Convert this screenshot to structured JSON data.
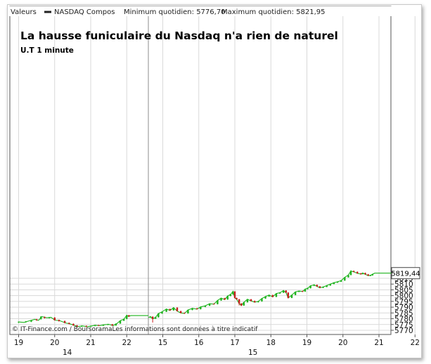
{
  "header": {
    "valeurs_label": "Valeurs",
    "series_label": "NASDAQ Compos",
    "min_label": "Minimum quotidien: 5776,70",
    "max_label": "Maximum quotidien: 5821,95"
  },
  "chart_data": {
    "type": "candlestick",
    "title": "La hausse funiculaire du Nasdaq n'a rien de naturel",
    "subtitle": "U.T 1 minute",
    "footer": "© IT-Finance.com / BoursoramaLes informations sont données à titre indicatif",
    "last_value_label": "5819,44",
    "last_value": 5819.44,
    "ylim": [
      5770,
      5823
    ],
    "y_ticks": [
      5770,
      5775,
      5780,
      5785,
      5790,
      5795,
      5800,
      5805,
      5810,
      5815
    ],
    "x_hour_labels": [
      "19",
      "20",
      "21",
      "22",
      "15",
      "16",
      "17",
      "18",
      "19",
      "20",
      "21",
      "22"
    ],
    "x_day_labels": [
      "14",
      "15"
    ],
    "grid": true,
    "colors": {
      "up": "#1db31d",
      "down": "#c81e1e",
      "flat": "#1db31d",
      "grid": "#d9d9d9",
      "day_separator": "#8c8c8c"
    },
    "series": [
      {
        "session": "14",
        "path": [
          [
            0.0,
            5777.2
          ],
          [
            0.15,
            5776.8
          ],
          [
            0.3,
            5778.2
          ],
          [
            0.45,
            5779.4
          ],
          [
            0.55,
            5778.6
          ],
          [
            0.65,
            5781.8
          ],
          [
            0.78,
            5780.8
          ],
          [
            0.9,
            5781.2
          ],
          [
            1.0,
            5778.8
          ],
          [
            1.15,
            5778.2
          ],
          [
            1.3,
            5776.4
          ],
          [
            1.42,
            5775.6
          ],
          [
            1.55,
            5774.2
          ],
          [
            1.65,
            5773.2
          ],
          [
            1.78,
            5773.8
          ],
          [
            1.9,
            5773.1
          ],
          [
            2.0,
            5773.6
          ],
          [
            2.12,
            5774.3
          ],
          [
            2.25,
            5774.0
          ],
          [
            2.38,
            5774.8
          ],
          [
            2.5,
            5775.2
          ],
          [
            2.62,
            5774.1
          ],
          [
            2.72,
            5775.6
          ],
          [
            2.82,
            5778.3
          ],
          [
            2.92,
            5779.6
          ],
          [
            3.0,
            5783.0
          ],
          [
            3.05,
            5782.0
          ],
          [
            3.12,
            5782.7
          ],
          [
            3.52,
            5782.7
          ],
          [
            3.6,
            5782.7
          ]
        ]
      },
      {
        "session": "15",
        "path": [
          [
            3.6,
            5781.0
          ],
          [
            3.66,
            5781.8
          ],
          [
            3.72,
            5779.8
          ],
          [
            3.8,
            5781.2
          ],
          [
            3.88,
            5784.5
          ],
          [
            3.98,
            5786.0
          ],
          [
            4.1,
            5788.4
          ],
          [
            4.2,
            5787.2
          ],
          [
            4.3,
            5789.5
          ],
          [
            4.4,
            5786.6
          ],
          [
            4.5,
            5785.0
          ],
          [
            4.6,
            5784.6
          ],
          [
            4.7,
            5787.6
          ],
          [
            4.82,
            5789.0
          ],
          [
            4.95,
            5788.3
          ],
          [
            5.05,
            5790.2
          ],
          [
            5.18,
            5791.2
          ],
          [
            5.3,
            5793.0
          ],
          [
            5.42,
            5792.6
          ],
          [
            5.52,
            5795.8
          ],
          [
            5.62,
            5797.8
          ],
          [
            5.72,
            5796.6
          ],
          [
            5.8,
            5799.7
          ],
          [
            5.88,
            5801.0
          ],
          [
            5.95,
            5803.6
          ],
          [
            6.0,
            5798.0
          ],
          [
            6.05,
            5796.8
          ],
          [
            6.12,
            5793.2
          ],
          [
            6.18,
            5791.4
          ],
          [
            6.25,
            5794.2
          ],
          [
            6.35,
            5796.8
          ],
          [
            6.45,
            5795.4
          ],
          [
            6.55,
            5794.3
          ],
          [
            6.65,
            5795.0
          ],
          [
            6.75,
            5797.5
          ],
          [
            6.85,
            5799.2
          ],
          [
            6.95,
            5800.5
          ],
          [
            7.05,
            5798.9
          ],
          [
            7.15,
            5801.8
          ],
          [
            7.25,
            5802.5
          ],
          [
            7.35,
            5804.4
          ],
          [
            7.42,
            5802.6
          ],
          [
            7.48,
            5798.0
          ],
          [
            7.58,
            5800.5
          ],
          [
            7.68,
            5803.2
          ],
          [
            7.78,
            5804.0
          ],
          [
            7.88,
            5803.5
          ],
          [
            7.95,
            5805.6
          ],
          [
            8.02,
            5806.4
          ],
          [
            8.1,
            5808.5
          ],
          [
            8.2,
            5809.3
          ],
          [
            8.28,
            5808.0
          ],
          [
            8.36,
            5806.8
          ],
          [
            8.45,
            5807.5
          ],
          [
            8.55,
            5808.7
          ],
          [
            8.65,
            5810.0
          ],
          [
            8.75,
            5811.2
          ],
          [
            8.85,
            5812.0
          ],
          [
            8.95,
            5813.0
          ],
          [
            9.05,
            5815.8
          ],
          [
            9.15,
            5817.8
          ],
          [
            9.22,
            5821.3
          ],
          [
            9.3,
            5820.6
          ],
          [
            9.4,
            5819.3
          ],
          [
            9.5,
            5818.6
          ],
          [
            9.55,
            5819.6
          ],
          [
            9.62,
            5818.4
          ],
          [
            9.7,
            5817.3
          ],
          [
            9.76,
            5817.5
          ],
          [
            9.82,
            5818.5
          ],
          [
            9.88,
            5819.44
          ],
          [
            10.5,
            5819.44
          ]
        ]
      }
    ],
    "candles": [
      [
        0.0,
        5776.7,
        5777.4,
        5776.4,
        5777.6
      ],
      [
        0.2,
        5777.0,
        5777.6,
        5776.6,
        5778.0
      ],
      [
        0.35,
        5777.4,
        5778.5,
        5777.1,
        5778.9
      ],
      [
        0.5,
        5779.4,
        5778.6,
        5778.3,
        5779.9
      ],
      [
        0.62,
        5779.6,
        5781.8,
        5779.3,
        5782.2
      ],
      [
        0.72,
        5781.5,
        5780.6,
        5780.2,
        5781.9
      ],
      [
        0.85,
        5780.6,
        5781.1,
        5780.2,
        5781.5
      ],
      [
        1.0,
        5781.0,
        5778.7,
        5778.4,
        5781.3
      ],
      [
        1.12,
        5779.0,
        5778.0,
        5777.5,
        5779.2
      ],
      [
        1.28,
        5778.0,
        5776.4,
        5776.0,
        5778.4
      ],
      [
        1.4,
        5776.4,
        5775.6,
        5775.2,
        5776.7
      ],
      [
        1.52,
        5775.6,
        5774.2,
        5773.9,
        5775.9
      ],
      [
        1.62,
        5774.2,
        5773.3,
        5772.9,
        5774.5
      ],
      [
        1.75,
        5773.2,
        5773.9,
        5772.9,
        5774.3
      ],
      [
        1.88,
        5773.8,
        5773.2,
        5772.8,
        5774.2
      ],
      [
        2.0,
        5773.2,
        5773.7,
        5772.8,
        5774.0
      ],
      [
        2.12,
        5773.7,
        5774.4,
        5773.4,
        5774.8
      ],
      [
        2.22,
        5774.4,
        5774.0,
        5773.6,
        5774.7
      ],
      [
        2.35,
        5774.0,
        5774.8,
        5773.7,
        5775.1
      ],
      [
        2.48,
        5774.8,
        5775.3,
        5774.4,
        5775.6
      ],
      [
        2.6,
        5775.2,
        5774.1,
        5773.8,
        5775.4
      ],
      [
        2.7,
        5774.1,
        5775.7,
        5773.9,
        5776.0
      ],
      [
        2.82,
        5775.8,
        5778.3,
        5775.6,
        5778.6
      ],
      [
        2.92,
        5778.3,
        5779.7,
        5778.0,
        5780.2
      ],
      [
        3.0,
        5779.8,
        5783.0,
        5779.5,
        5783.4
      ],
      [
        3.06,
        5783.0,
        5782.0,
        5781.6,
        5783.3
      ],
      [
        3.66,
        5781.0,
        5781.8,
        5780.7,
        5782.2
      ],
      [
        3.72,
        5781.8,
        5779.9,
        5776.7,
        5782.0
      ],
      [
        3.8,
        5780.0,
        5781.3,
        5779.7,
        5781.7
      ],
      [
        3.88,
        5781.3,
        5784.5,
        5781.0,
        5784.8
      ],
      [
        3.98,
        5784.5,
        5786.0,
        5784.2,
        5786.4
      ],
      [
        4.1,
        5786.0,
        5788.4,
        5785.8,
        5788.8
      ],
      [
        4.2,
        5788.4,
        5787.2,
        5786.8,
        5788.7
      ],
      [
        4.3,
        5787.2,
        5789.6,
        5787.0,
        5790.0
      ],
      [
        4.4,
        5789.6,
        5786.6,
        5786.2,
        5789.9
      ],
      [
        4.5,
        5786.6,
        5785.0,
        5784.6,
        5786.9
      ],
      [
        4.6,
        5785.0,
        5784.6,
        5784.2,
        5785.4
      ],
      [
        4.7,
        5784.6,
        5787.6,
        5784.4,
        5788.0
      ],
      [
        4.82,
        5787.6,
        5789.0,
        5787.3,
        5789.4
      ],
      [
        4.95,
        5789.0,
        5788.3,
        5787.9,
        5789.3
      ],
      [
        5.05,
        5788.3,
        5790.2,
        5788.0,
        5790.6
      ],
      [
        5.18,
        5790.2,
        5791.2,
        5789.9,
        5791.6
      ],
      [
        5.3,
        5791.2,
        5793.0,
        5791.0,
        5793.4
      ],
      [
        5.42,
        5793.0,
        5792.6,
        5792.2,
        5793.3
      ],
      [
        5.52,
        5792.6,
        5795.8,
        5792.4,
        5796.2
      ],
      [
        5.62,
        5795.8,
        5797.8,
        5795.5,
        5798.2
      ],
      [
        5.72,
        5797.8,
        5796.6,
        5796.2,
        5798.1
      ],
      [
        5.8,
        5796.6,
        5799.7,
        5796.4,
        5800.1
      ],
      [
        5.88,
        5799.7,
        5801.0,
        5799.4,
        5801.4
      ],
      [
        5.95,
        5801.0,
        5803.6,
        5800.8,
        5804.2
      ],
      [
        6.0,
        5803.6,
        5798.0,
        5797.6,
        5803.9
      ],
      [
        6.05,
        5798.0,
        5796.8,
        5796.3,
        5798.3
      ],
      [
        6.12,
        5796.8,
        5793.2,
        5791.5,
        5797.1
      ],
      [
        6.18,
        5793.2,
        5791.4,
        5791.0,
        5793.5
      ],
      [
        6.25,
        5791.4,
        5794.2,
        5791.2,
        5794.6
      ],
      [
        6.35,
        5794.2,
        5796.8,
        5794.0,
        5797.2
      ],
      [
        6.45,
        5796.8,
        5795.4,
        5795.0,
        5797.1
      ],
      [
        6.55,
        5795.4,
        5794.3,
        5793.9,
        5795.7
      ],
      [
        6.65,
        5794.3,
        5795.0,
        5794.0,
        5795.4
      ],
      [
        6.75,
        5795.0,
        5797.5,
        5794.8,
        5797.9
      ],
      [
        6.85,
        5797.5,
        5799.2,
        5797.2,
        5799.6
      ],
      [
        6.95,
        5799.2,
        5800.5,
        5799.0,
        5800.9
      ],
      [
        7.05,
        5800.5,
        5798.9,
        5798.5,
        5800.8
      ],
      [
        7.15,
        5798.9,
        5801.8,
        5798.7,
        5802.2
      ],
      [
        7.25,
        5801.8,
        5802.5,
        5801.5,
        5802.9
      ],
      [
        7.35,
        5802.5,
        5804.4,
        5802.3,
        5804.8
      ],
      [
        7.42,
        5804.4,
        5802.6,
        5802.2,
        5804.7
      ],
      [
        7.48,
        5802.6,
        5798.0,
        5797.6,
        5802.9
      ],
      [
        7.58,
        5798.0,
        5800.5,
        5797.8,
        5800.9
      ],
      [
        7.68,
        5800.5,
        5803.2,
        5800.3,
        5803.6
      ],
      [
        7.78,
        5803.2,
        5804.0,
        5803.0,
        5804.4
      ],
      [
        7.88,
        5804.0,
        5803.5,
        5803.1,
        5804.3
      ],
      [
        7.95,
        5803.5,
        5805.6,
        5803.3,
        5806.0
      ],
      [
        8.02,
        5805.6,
        5806.4,
        5805.4,
        5806.8
      ],
      [
        8.1,
        5806.4,
        5808.5,
        5806.2,
        5808.9
      ],
      [
        8.2,
        5808.5,
        5809.3,
        5808.2,
        5809.9
      ],
      [
        8.28,
        5809.3,
        5808.0,
        5807.6,
        5809.6
      ],
      [
        8.36,
        5808.0,
        5806.8,
        5806.4,
        5808.3
      ],
      [
        8.45,
        5806.8,
        5807.5,
        5806.5,
        5807.9
      ],
      [
        8.55,
        5807.5,
        5808.7,
        5807.3,
        5809.1
      ],
      [
        8.65,
        5808.7,
        5810.0,
        5808.5,
        5810.4
      ],
      [
        8.75,
        5810.0,
        5811.2,
        5809.8,
        5811.6
      ],
      [
        8.85,
        5811.2,
        5812.0,
        5811.0,
        5812.4
      ],
      [
        8.95,
        5812.0,
        5813.0,
        5811.8,
        5813.4
      ],
      [
        9.05,
        5813.0,
        5815.8,
        5812.8,
        5816.2
      ],
      [
        9.15,
        5815.8,
        5817.8,
        5815.6,
        5818.3
      ],
      [
        9.22,
        5817.8,
        5821.3,
        5817.6,
        5821.95
      ],
      [
        9.3,
        5821.3,
        5820.6,
        5820.2,
        5821.7
      ],
      [
        9.4,
        5820.6,
        5819.3,
        5818.9,
        5820.9
      ],
      [
        9.5,
        5819.3,
        5818.6,
        5818.2,
        5819.6
      ],
      [
        9.55,
        5818.6,
        5819.6,
        5818.4,
        5820.0
      ],
      [
        9.62,
        5819.6,
        5818.4,
        5818.0,
        5819.9
      ],
      [
        9.7,
        5818.4,
        5817.3,
        5816.9,
        5818.7
      ],
      [
        9.76,
        5817.3,
        5817.5,
        5816.9,
        5817.9
      ],
      [
        9.82,
        5817.5,
        5818.5,
        5817.3,
        5818.9
      ]
    ]
  }
}
